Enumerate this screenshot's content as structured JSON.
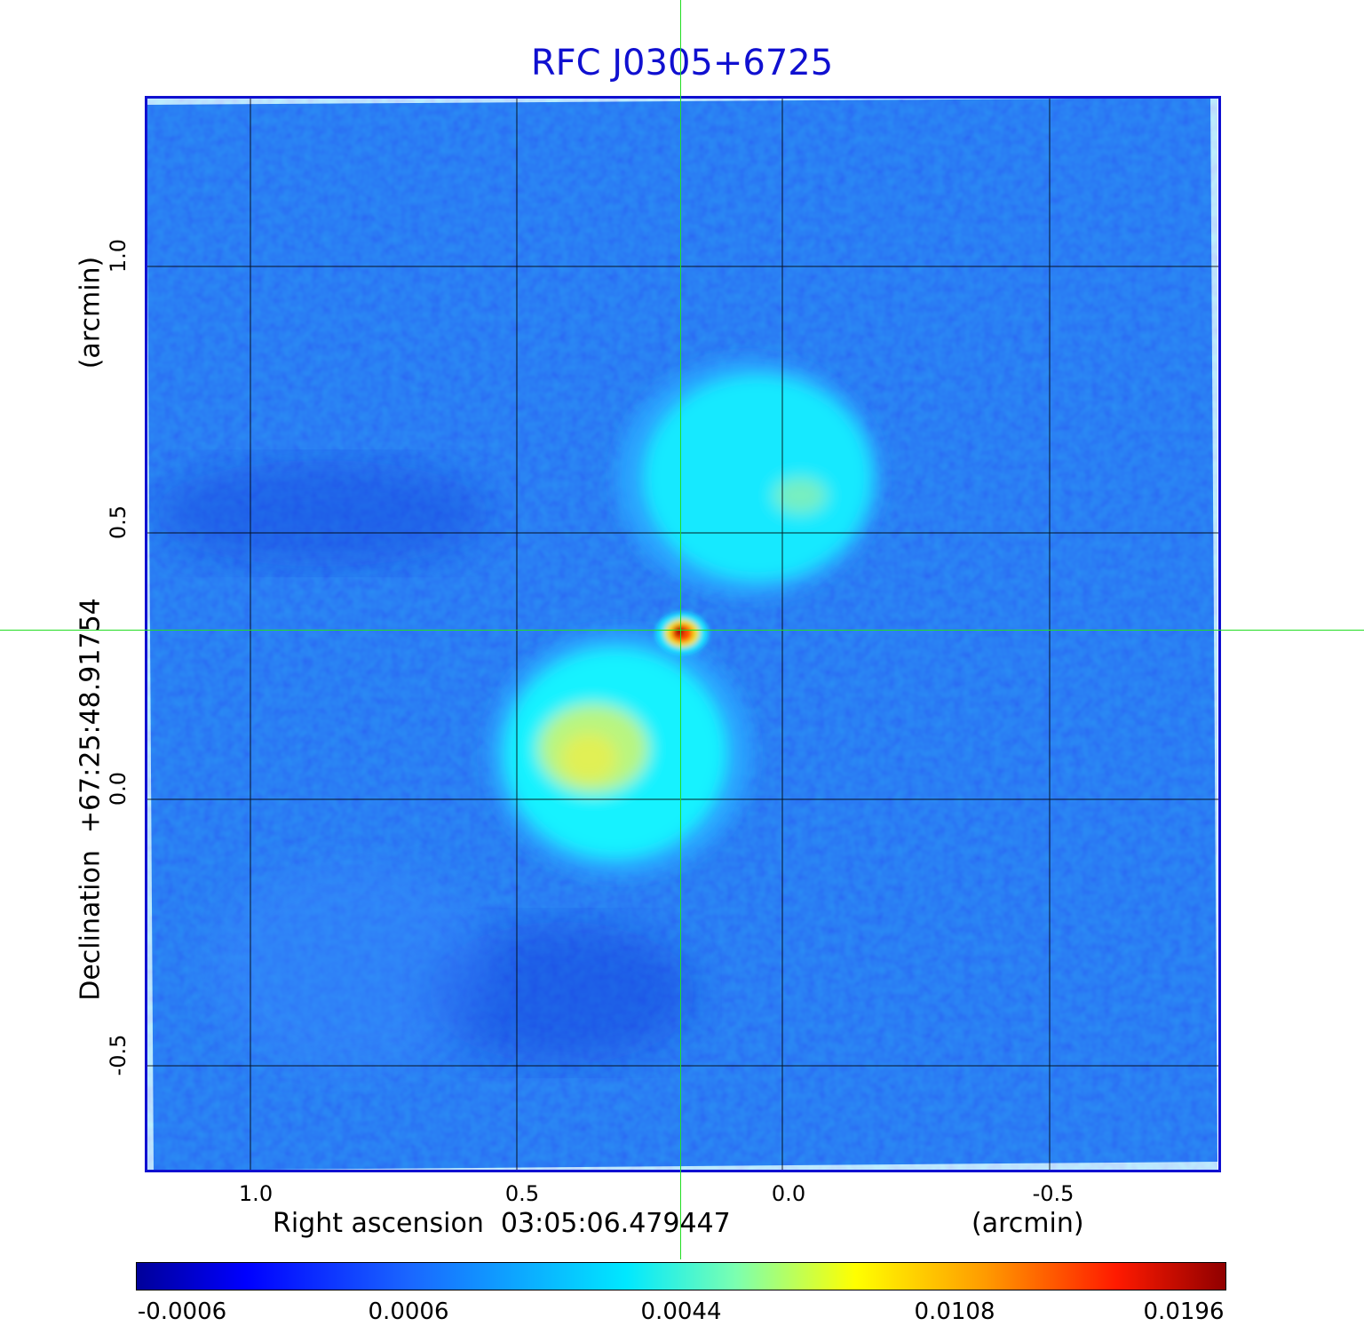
{
  "title": "RFC J0305+6725",
  "x_axis": {
    "label": "Right ascension  03:05:06.479447",
    "unit": "(arcmin)",
    "ticks": [
      "1.0",
      "0.5",
      "0.0",
      "-0.5"
    ]
  },
  "y_axis": {
    "label": "Declination  +67:25:48.91754",
    "unit": "(arcmin)",
    "ticks": [
      "1.0",
      "0.5",
      "0.0",
      "-0.5"
    ]
  },
  "colorbar": {
    "labels": [
      "-0.0006",
      "0.0006",
      "0.0044",
      "0.0108",
      "0.0196"
    ],
    "colormap": "jet"
  },
  "colors": {
    "frame": "#1010d0",
    "title": "#1010d0",
    "crosshair": "#22dd22",
    "grid": "#000000"
  }
}
